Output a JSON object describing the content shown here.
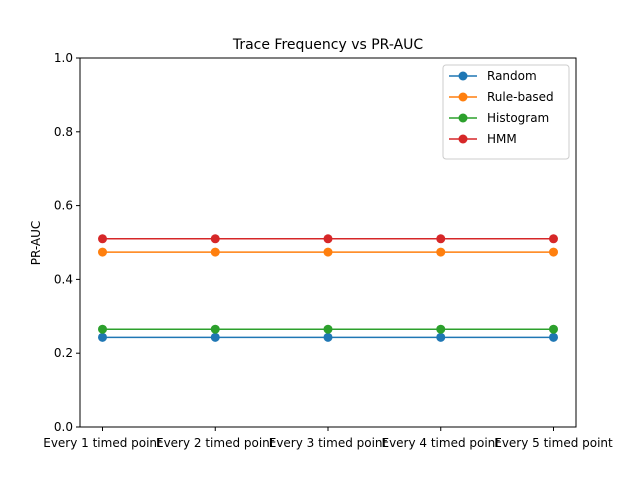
{
  "chart_data": {
    "type": "line",
    "title": "Trace Frequency vs PR-AUC",
    "xlabel": "",
    "ylabel": "PR-AUC",
    "ylim": [
      0,
      1
    ],
    "yticks": [
      0.0,
      0.2,
      0.4,
      0.6,
      0.8,
      1.0
    ],
    "ytick_labels": [
      "0.0",
      "0.2",
      "0.4",
      "0.6",
      "0.8",
      "1.0"
    ],
    "categories": [
      "Every 1 timed point",
      "Every 2 timed point",
      "Every 3 timed point",
      "Every 4 timed point",
      "Every 5 timed point"
    ],
    "grid": false,
    "legend_position": "top-right",
    "series": [
      {
        "name": "Random",
        "color": "#1f77b4",
        "values": [
          0.243,
          0.243,
          0.243,
          0.243,
          0.243
        ]
      },
      {
        "name": "Rule-based",
        "color": "#ff7f0e",
        "values": [
          0.474,
          0.474,
          0.474,
          0.474,
          0.474
        ]
      },
      {
        "name": "Histogram",
        "color": "#2ca02c",
        "values": [
          0.265,
          0.265,
          0.265,
          0.265,
          0.265
        ]
      },
      {
        "name": "HMM",
        "color": "#d62728",
        "values": [
          0.51,
          0.51,
          0.51,
          0.51,
          0.51
        ]
      }
    ]
  }
}
